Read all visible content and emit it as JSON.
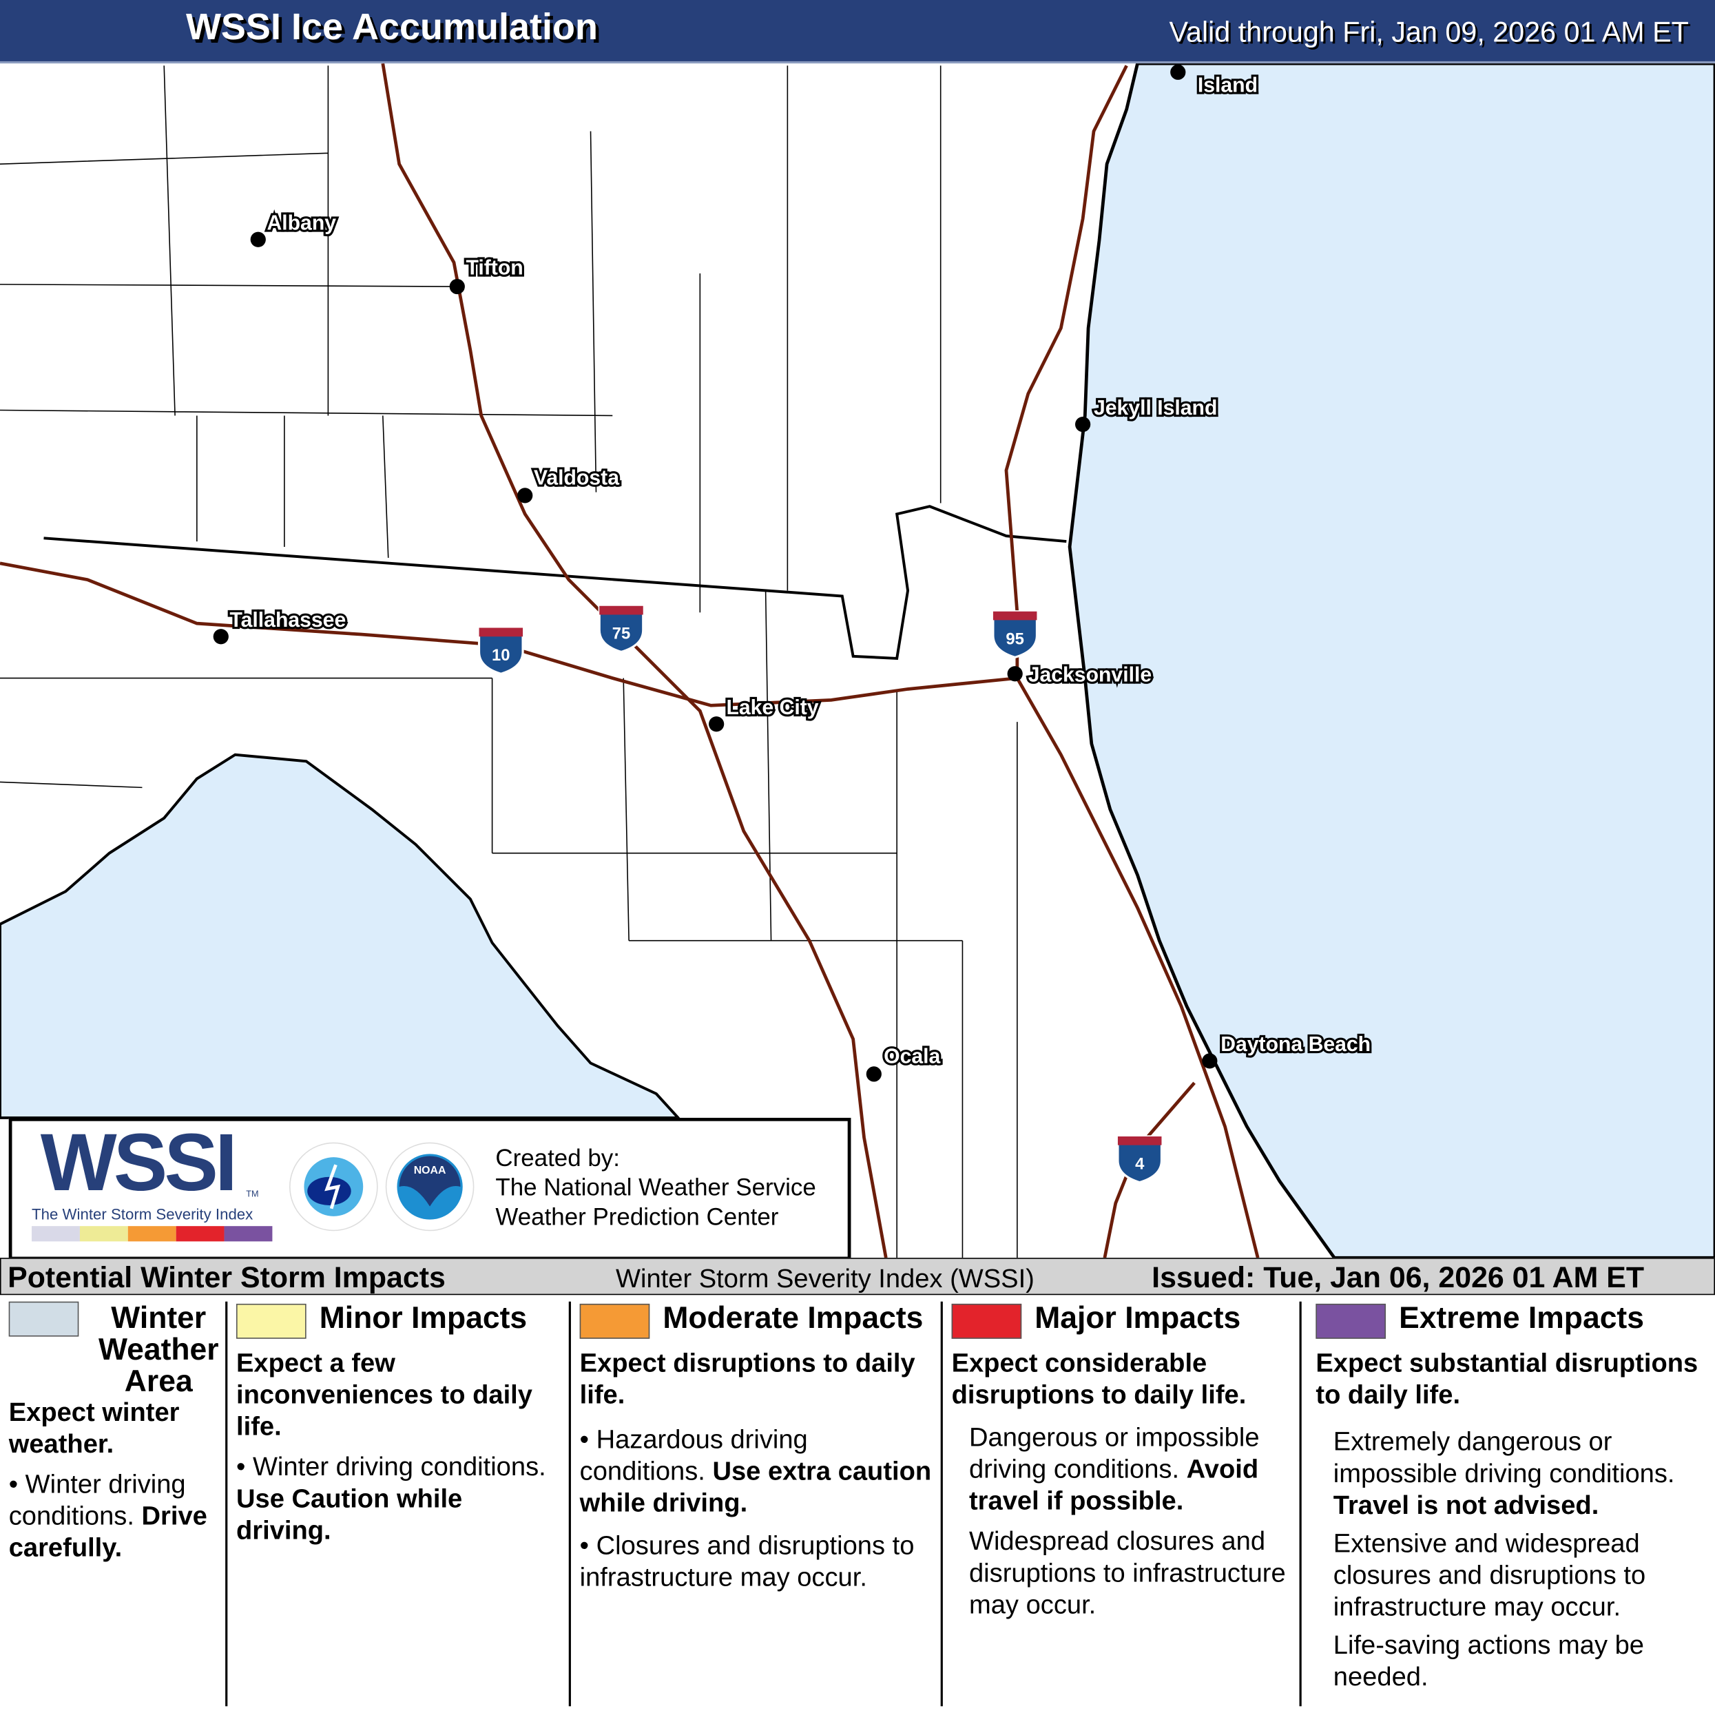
{
  "header": {
    "title": "WSSI Ice Accumulation",
    "valid": "Valid through Fri, Jan 09, 2026 01 AM ET"
  },
  "map": {
    "cities": [
      {
        "name": "Albany"
      },
      {
        "name": "Tifton"
      },
      {
        "name": "Valdosta"
      },
      {
        "name": "Tallahassee"
      },
      {
        "name": "Lake City"
      },
      {
        "name": "Jacksonville"
      },
      {
        "name": "Jekyll Island"
      },
      {
        "name": "Ocala"
      },
      {
        "name": "Daytona Beach"
      },
      {
        "name": "Island"
      }
    ],
    "interstates": [
      "10",
      "75",
      "95",
      "4"
    ],
    "colors": {
      "ocean": "#dcedfb",
      "land": "#ffffff",
      "interstate": "#6b1d0a",
      "shield_blue": "#1b4f8f",
      "shield_red": "#b0243a"
    }
  },
  "logo": {
    "wssi": "WSSI",
    "tm": "TM",
    "subtitle": "The Winter Storm Severity Index",
    "nws_text": "NATIONAL WEATHER SERVICE",
    "noaa_text": "NOAA",
    "created_by": "Created by:",
    "org1": "The National Weather Service",
    "org2": "Weather Prediction Center",
    "scale_colors": [
      "#d9d9e8",
      "#eeeb96",
      "#f59a35",
      "#e3232b",
      "#7a52a0"
    ]
  },
  "legend": {
    "heading": "Potential Winter Storm Impacts",
    "index_name": "Winter Storm Severity Index (WSSI)",
    "issued": "Issued: Tue, Jan 06, 2026 01 AM ET",
    "categories": [
      {
        "color": "#d1dde6",
        "title": "Winter Weather Area",
        "summary": "Expect winter weather.",
        "bullet": "Winter driving conditions.",
        "bullet_bold": "Drive carefully."
      },
      {
        "color": "#fbf6a6",
        "title": "Minor Impacts",
        "summary": "Expect a few inconveniences to daily life.",
        "bullet": "Winter driving conditions.",
        "bullet_bold": "Use Caution while driving."
      },
      {
        "color": "#f59a35",
        "title": "Moderate Impacts",
        "summary": "Expect disruptions to daily life.",
        "bullet": "Hazardous driving conditions.",
        "bullet_bold": "Use extra caution while driving.",
        "bullet2": "Closures and disruptions to infrastructure may occur."
      },
      {
        "color": "#e3232b",
        "title": "Major Impacts",
        "summary": "Expect considerable disruptions to daily life.",
        "text1": "Dangerous or impossible driving conditions.",
        "text1_bold": "Avoid travel if possible.",
        "text2": "Widespread closures and disruptions to infrastructure may occur."
      },
      {
        "color": "#7a52a0",
        "title": "Extreme Impacts",
        "summary": "Expect substantial disruptions to daily life.",
        "text1": "Extremely dangerous or impossible driving conditions.",
        "text1_bold": "Travel is not advised.",
        "text2": "Extensive and widespread closures and disruptions to infrastructure may occur.",
        "text3": "Life-saving actions may be needed."
      }
    ]
  }
}
